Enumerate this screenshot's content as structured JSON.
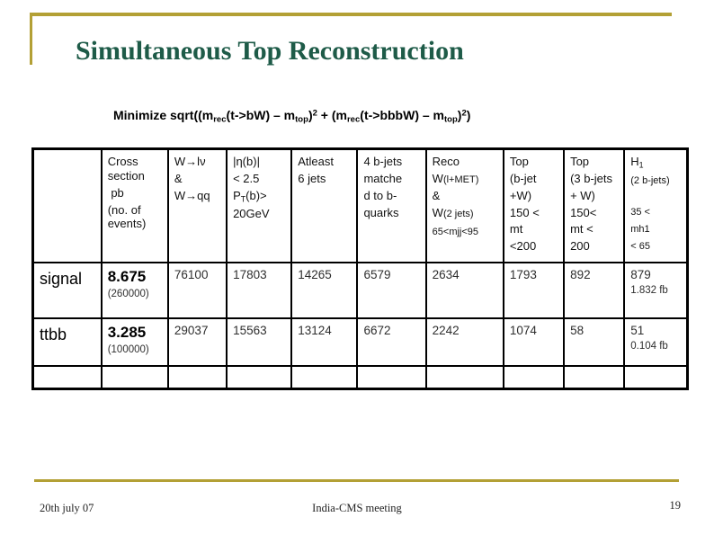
{
  "title": "Simultaneous Top Reconstruction",
  "colors": {
    "accent_gold": "#B3A035",
    "title_green": "#1E5B48"
  },
  "formula": [
    [
      {
        "t": "Minimize sqrt((m"
      },
      {
        "t": "rec",
        "s": "sub"
      },
      {
        "t": "(t->bW) – m"
      },
      {
        "t": "top",
        "s": "sub"
      },
      {
        "t": ")"
      },
      {
        "t": "2",
        "s": "sup"
      },
      {
        "t": " + (m"
      },
      {
        "t": "rec",
        "s": "sub"
      },
      {
        "t": "(t->bbbW) – m"
      },
      {
        "t": "top",
        "s": "sub"
      },
      {
        "t": ")"
      },
      {
        "t": "2",
        "s": "sup"
      },
      {
        "t": ")"
      }
    ]
  ],
  "table": {
    "headers": [
      [],
      [
        [
          {
            "t": "Cross section"
          }
        ],
        [
          {
            "t": " pb"
          }
        ],
        [
          {
            "t": "(no. of events)"
          }
        ]
      ],
      [
        [
          {
            "t": "W→lν"
          }
        ],
        [
          {
            "t": "&"
          }
        ],
        [
          {
            "t": "W→qq"
          }
        ]
      ],
      [
        [
          {
            "t": "|η(b)|"
          }
        ],
        [
          {
            "t": "< 2.5"
          }
        ],
        [
          {
            "t": "P"
          },
          {
            "t": "T",
            "s": "sub"
          },
          {
            "t": "(b)>"
          }
        ],
        [
          {
            "t": "20GeV"
          }
        ]
      ],
      [
        [
          {
            "t": "Atleast"
          }
        ],
        [
          {
            "t": "6 jets"
          }
        ]
      ],
      [
        [
          {
            "t": "4 b-jets"
          }
        ],
        [
          {
            "t": "matche"
          }
        ],
        [
          {
            "t": "d to b-"
          }
        ],
        [
          {
            "t": "quarks"
          }
        ]
      ],
      [
        [
          {
            "t": "Reco"
          }
        ],
        [
          {
            "t": "W"
          },
          {
            "t": "(l+MET)",
            "s": "sm"
          }
        ],
        [
          {
            "t": "&"
          }
        ],
        [
          {
            "t": "W"
          },
          {
            "t": "(2 jets)",
            "s": "sm"
          }
        ],
        [
          {
            "t": "65<mjj<95",
            "s": "sm"
          }
        ]
      ],
      [
        [
          {
            "t": "Top"
          }
        ],
        [
          {
            "t": "(b-jet"
          }
        ],
        [
          {
            "t": "+W)"
          }
        ],
        [
          {
            "t": "150 <"
          }
        ],
        [
          {
            "t": "mt"
          }
        ],
        [
          {
            "t": "<200"
          }
        ]
      ],
      [
        [
          {
            "t": "Top"
          }
        ],
        [
          {
            "t": "(3 b-jets"
          }
        ],
        [
          {
            "t": "+ W)"
          }
        ],
        [
          {
            "t": "150<"
          }
        ],
        [
          {
            "t": "mt <"
          }
        ],
        [
          {
            "t": "200"
          }
        ]
      ],
      [
        [
          {
            "t": "H"
          },
          {
            "t": "1",
            "s": "sub"
          }
        ],
        [
          {
            "t": "(2 b-jets)",
            "s": "sm"
          }
        ],
        [],
        [
          {
            "t": "35 <",
            "s": "sm"
          }
        ],
        [
          {
            "t": "mh1",
            "s": "sm"
          }
        ],
        [
          {
            "t": "< 65",
            "s": "sm"
          }
        ]
      ]
    ],
    "rows": [
      {
        "label": "signal",
        "cells": [
          {
            "main": "8.675",
            "note": "(260000)"
          },
          {
            "main": "76100"
          },
          {
            "main": "17803"
          },
          {
            "main": "14265"
          },
          {
            "main": "6579"
          },
          {
            "main": "2634"
          },
          {
            "main": "1793"
          },
          {
            "main": "892"
          },
          {
            "main": "879",
            "note": "1.832 fb"
          }
        ]
      },
      {
        "label": "ttbb",
        "cells": [
          {
            "main": "3.285",
            "note": "(100000)"
          },
          {
            "main": "29037"
          },
          {
            "main": "15563"
          },
          {
            "main": "13124"
          },
          {
            "main": "6672"
          },
          {
            "main": "2242"
          },
          {
            "main": "1074"
          },
          {
            "main": "58"
          },
          {
            "main": "51",
            "note": "0.104 fb"
          }
        ]
      }
    ]
  },
  "footer": {
    "date": "20th july 07",
    "center": "India-CMS meeting",
    "page": "19"
  }
}
